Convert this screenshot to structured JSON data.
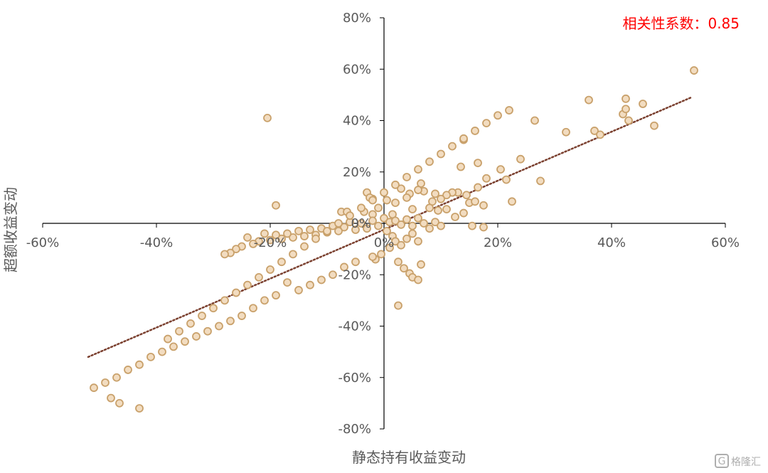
{
  "chart_data": {
    "type": "scatter",
    "xlabel": "静态持有收益变动",
    "ylabel": "超额收益变动",
    "annotation": "相关性系数：0.85",
    "xlim": [
      -0.6,
      0.6
    ],
    "ylim": [
      -0.8,
      0.8
    ],
    "x_ticks": [
      "-60%",
      "-40%",
      "-20%",
      "0%",
      "20%",
      "40%",
      "60%"
    ],
    "y_ticks": [
      "-80%",
      "-60%",
      "-40%",
      "-20%",
      "0%",
      "20%",
      "40%",
      "60%",
      "80%"
    ],
    "trendline": {
      "style": "dotted",
      "from": [
        -0.52,
        -0.52
      ],
      "to": [
        0.54,
        0.49
      ]
    },
    "colors": {
      "marker_fill": "#f2dcc0",
      "marker_stroke": "#c9a16b",
      "trendline": "#7a3f2e",
      "annotation": "#ff0000",
      "axis": "#000000"
    },
    "points": [
      [
        0.545,
        0.595
      ],
      [
        0.36,
        0.48
      ],
      [
        0.425,
        0.485
      ],
      [
        0.455,
        0.465
      ],
      [
        0.42,
        0.425
      ],
      [
        0.425,
        0.445
      ],
      [
        0.43,
        0.4
      ],
      [
        0.475,
        0.38
      ],
      [
        0.37,
        0.36
      ],
      [
        0.38,
        0.345
      ],
      [
        0.32,
        0.355
      ],
      [
        0.265,
        0.4
      ],
      [
        0.22,
        0.44
      ],
      [
        0.24,
        0.25
      ],
      [
        0.275,
        0.165
      ],
      [
        0.225,
        0.085
      ],
      [
        0.215,
        0.17
      ],
      [
        0.205,
        0.21
      ],
      [
        0.18,
        0.175
      ],
      [
        0.165,
        0.235
      ],
      [
        0.135,
        0.22
      ],
      [
        0.14,
        0.325
      ],
      [
        0.145,
        0.11
      ],
      [
        0.15,
        0.08
      ],
      [
        0.165,
        0.14
      ],
      [
        0.16,
        0.085
      ],
      [
        0.175,
        0.07
      ],
      [
        0.13,
        0.12
      ],
      [
        0.12,
        0.12
      ],
      [
        0.11,
        0.11
      ],
      [
        0.1,
        0.095
      ],
      [
        0.09,
        0.115
      ],
      [
        0.085,
        0.085
      ],
      [
        0.07,
        0.125
      ],
      [
        0.065,
        0.155
      ],
      [
        0.06,
        0.13
      ],
      [
        0.045,
        0.115
      ],
      [
        0.04,
        0.1
      ],
      [
        0.03,
        0.135
      ],
      [
        0.02,
        0.08
      ],
      [
        0.005,
        0.09
      ],
      [
        -0.02,
        0.095
      ],
      [
        -0.03,
        0.12
      ],
      [
        -0.025,
        0.1
      ],
      [
        -0.075,
        0.045
      ],
      [
        -0.065,
        0.045
      ],
      [
        -0.035,
        0.045
      ],
      [
        -0.02,
        0.035
      ],
      [
        0.015,
        0.035
      ],
      [
        0.05,
        0.055
      ],
      [
        0.08,
        0.06
      ],
      [
        0.095,
        0.05
      ],
      [
        0.11,
        0.055
      ],
      [
        0.125,
        0.025
      ],
      [
        0.14,
        0.04
      ],
      [
        0.155,
        -0.01
      ],
      [
        0.175,
        -0.015
      ],
      [
        -0.19,
        0.07
      ],
      [
        -0.205,
        0.41
      ],
      [
        -0.01,
        0.06
      ],
      [
        0.0,
        0.02
      ],
      [
        0.01,
        0.005
      ],
      [
        0.02,
        0.01
      ],
      [
        0.03,
        -0.005
      ],
      [
        0.04,
        0.015
      ],
      [
        0.05,
        -0.01
      ],
      [
        0.06,
        0.02
      ],
      [
        0.07,
        0.0
      ],
      [
        0.08,
        -0.02
      ],
      [
        0.09,
        0.005
      ],
      [
        0.1,
        -0.01
      ],
      [
        -0.01,
        -0.01
      ],
      [
        -0.02,
        0.01
      ],
      [
        -0.03,
        -0.02
      ],
      [
        -0.04,
        0.0
      ],
      [
        -0.05,
        -0.025
      ],
      [
        -0.06,
        0.005
      ],
      [
        -0.07,
        -0.015
      ],
      [
        -0.08,
        -0.03
      ],
      [
        -0.09,
        -0.01
      ],
      [
        -0.1,
        -0.035
      ],
      [
        -0.11,
        -0.02
      ],
      [
        -0.12,
        -0.045
      ],
      [
        -0.13,
        -0.025
      ],
      [
        -0.14,
        -0.05
      ],
      [
        -0.15,
        -0.03
      ],
      [
        -0.16,
        -0.055
      ],
      [
        -0.17,
        -0.04
      ],
      [
        -0.18,
        -0.06
      ],
      [
        -0.19,
        -0.045
      ],
      [
        -0.2,
        -0.065
      ],
      [
        -0.21,
        -0.04
      ],
      [
        -0.22,
        -0.07
      ],
      [
        -0.23,
        -0.08
      ],
      [
        -0.24,
        -0.055
      ],
      [
        -0.25,
        -0.09
      ],
      [
        -0.26,
        -0.1
      ],
      [
        -0.27,
        -0.115
      ],
      [
        -0.28,
        -0.12
      ],
      [
        0.005,
        -0.03
      ],
      [
        0.015,
        -0.05
      ],
      [
        0.02,
        -0.07
      ],
      [
        0.03,
        -0.085
      ],
      [
        0.04,
        -0.06
      ],
      [
        0.05,
        -0.04
      ],
      [
        0.06,
        -0.07
      ],
      [
        0.01,
        -0.095
      ],
      [
        -0.005,
        -0.12
      ],
      [
        -0.015,
        -0.14
      ],
      [
        0.025,
        -0.15
      ],
      [
        0.035,
        -0.175
      ],
      [
        0.045,
        -0.195
      ],
      [
        0.05,
        -0.21
      ],
      [
        0.06,
        -0.22
      ],
      [
        0.065,
        -0.16
      ],
      [
        0.025,
        -0.32
      ],
      [
        -0.02,
        -0.13
      ],
      [
        -0.05,
        -0.15
      ],
      [
        -0.07,
        -0.17
      ],
      [
        -0.09,
        -0.2
      ],
      [
        -0.11,
        -0.22
      ],
      [
        -0.13,
        -0.24
      ],
      [
        -0.15,
        -0.26
      ],
      [
        -0.17,
        -0.23
      ],
      [
        -0.19,
        -0.28
      ],
      [
        -0.21,
        -0.3
      ],
      [
        -0.23,
        -0.33
      ],
      [
        -0.25,
        -0.36
      ],
      [
        -0.27,
        -0.38
      ],
      [
        -0.29,
        -0.4
      ],
      [
        -0.31,
        -0.42
      ],
      [
        -0.33,
        -0.44
      ],
      [
        -0.35,
        -0.46
      ],
      [
        -0.37,
        -0.48
      ],
      [
        -0.39,
        -0.5
      ],
      [
        -0.41,
        -0.52
      ],
      [
        -0.43,
        -0.55
      ],
      [
        -0.45,
        -0.57
      ],
      [
        -0.47,
        -0.6
      ],
      [
        -0.49,
        -0.62
      ],
      [
        -0.51,
        -0.64
      ],
      [
        -0.465,
        -0.7
      ],
      [
        -0.43,
        -0.72
      ],
      [
        -0.48,
        -0.68
      ],
      [
        -0.38,
        -0.45
      ],
      [
        -0.36,
        -0.42
      ],
      [
        -0.34,
        -0.39
      ],
      [
        -0.32,
        -0.36
      ],
      [
        -0.3,
        -0.33
      ],
      [
        -0.28,
        -0.3
      ],
      [
        -0.26,
        -0.27
      ],
      [
        -0.24,
        -0.24
      ],
      [
        -0.22,
        -0.21
      ],
      [
        -0.2,
        -0.18
      ],
      [
        -0.18,
        -0.15
      ],
      [
        -0.16,
        -0.12
      ],
      [
        -0.14,
        -0.09
      ],
      [
        -0.12,
        -0.06
      ],
      [
        -0.1,
        -0.03
      ],
      [
        -0.08,
        0.0
      ],
      [
        -0.06,
        0.03
      ],
      [
        -0.04,
        0.06
      ],
      [
        -0.02,
        0.09
      ],
      [
        0.0,
        0.12
      ],
      [
        0.02,
        0.15
      ],
      [
        0.04,
        0.18
      ],
      [
        0.06,
        0.21
      ],
      [
        0.08,
        0.24
      ],
      [
        0.1,
        0.27
      ],
      [
        0.12,
        0.3
      ],
      [
        0.14,
        0.33
      ],
      [
        0.16,
        0.36
      ],
      [
        0.18,
        0.39
      ],
      [
        0.2,
        0.42
      ]
    ]
  },
  "watermark": {
    "text": "格隆汇"
  }
}
